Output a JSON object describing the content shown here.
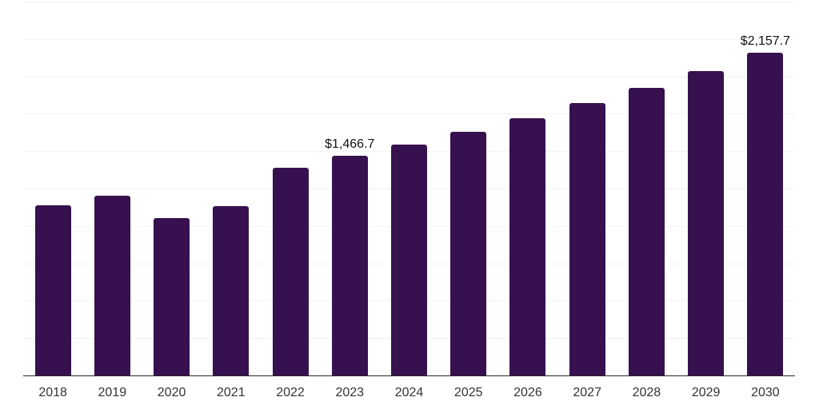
{
  "chart_data": {
    "type": "bar",
    "title": "",
    "xlabel": "",
    "ylabel": "",
    "categories": [
      "2018",
      "2019",
      "2020",
      "2021",
      "2022",
      "2023",
      "2024",
      "2025",
      "2026",
      "2027",
      "2028",
      "2029",
      "2030"
    ],
    "values": [
      1140,
      1200,
      1055,
      1130,
      1390,
      1466.7,
      1545,
      1630,
      1720,
      1820,
      1925,
      2035,
      2157.7
    ],
    "value_labels": [
      {
        "category": "2023",
        "index": 5,
        "text": "$1,466.7"
      },
      {
        "category": "2030",
        "index": 12,
        "text": "$2,157.7"
      }
    ],
    "ylim": [
      0,
      2500
    ],
    "gridline_step": 250,
    "grid": "horizontal-only",
    "legend": "none",
    "y_axis_labels_visible": false,
    "colors": {
      "bar": "#37114F",
      "gridline": "#f2f2f2",
      "axis_line": "#262626",
      "tick_label": "#333333",
      "value_label": "#111111",
      "background": "#ffffff"
    }
  }
}
